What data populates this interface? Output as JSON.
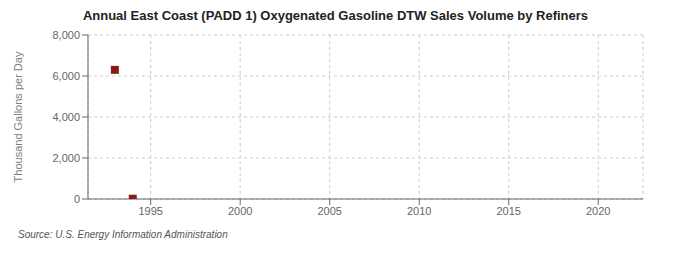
{
  "chart_data": {
    "type": "scatter",
    "title": "Annual East Coast (PADD 1) Oxygenated Gasoline DTW Sales Volume by Refiners",
    "ylabel": "Thousand Gallons per Day",
    "annotations": [
      "Source: U.S. Energy Information Administration"
    ],
    "x": [
      1993,
      1994
    ],
    "values": [
      6300,
      15
    ],
    "color": "#8b1a1a",
    "marker": "square",
    "xlim": [
      1991.5,
      2022.5
    ],
    "xticks": [
      1995,
      2000,
      2005,
      2010,
      2015,
      2020
    ],
    "ylim": [
      0,
      8000
    ],
    "yticks": [
      0,
      {
        "value": 2000,
        "label": "2,000"
      },
      {
        "value": 4000,
        "label": "4,000"
      },
      {
        "value": 6000,
        "label": "6,000"
      },
      {
        "value": 8000,
        "label": "8,000"
      }
    ],
    "grid": true
  }
}
